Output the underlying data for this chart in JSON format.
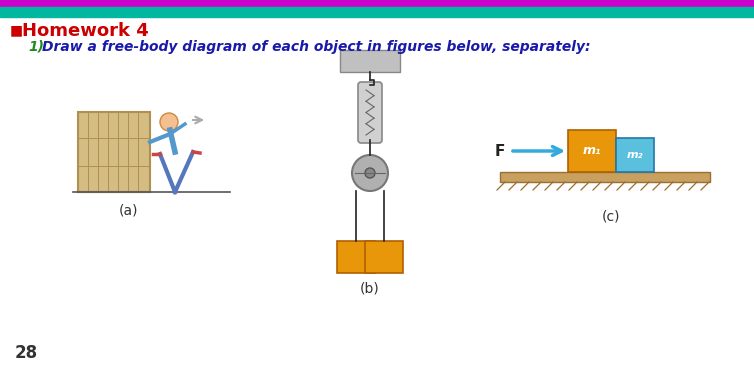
{
  "title": "Homework 4",
  "title_color": "#cc0000",
  "title_bullet": "■",
  "subtitle_color": "#1a1aaa",
  "subtitle_number_color": "#228B22",
  "bg_color": "#ffffff",
  "top_bar1_color": "#cc00cc",
  "top_bar2_color": "#00b8a0",
  "page_number": "28",
  "label_a": "(a)",
  "label_b": "(b)",
  "label_c": "(c)",
  "label_F": "F",
  "label_m1": "m₁",
  "label_m2": "m₂",
  "arrow_color": "#33aadd",
  "m1_color": "#e8960a",
  "m2_color": "#5bc0de",
  "wall_color": "#d4bc82",
  "wall_edge": "#b09050",
  "weight_color": "#e8960a",
  "weight_edge": "#b06000",
  "rope_color": "#222222",
  "ceiling_color": "#c0c0c0",
  "ceiling_edge": "#888888",
  "spring_color": "#b8b8b8",
  "pulley_color": "#b0b0b0",
  "surface_top_color": "#c8a060",
  "surface_hatch_color": "#9a7030"
}
